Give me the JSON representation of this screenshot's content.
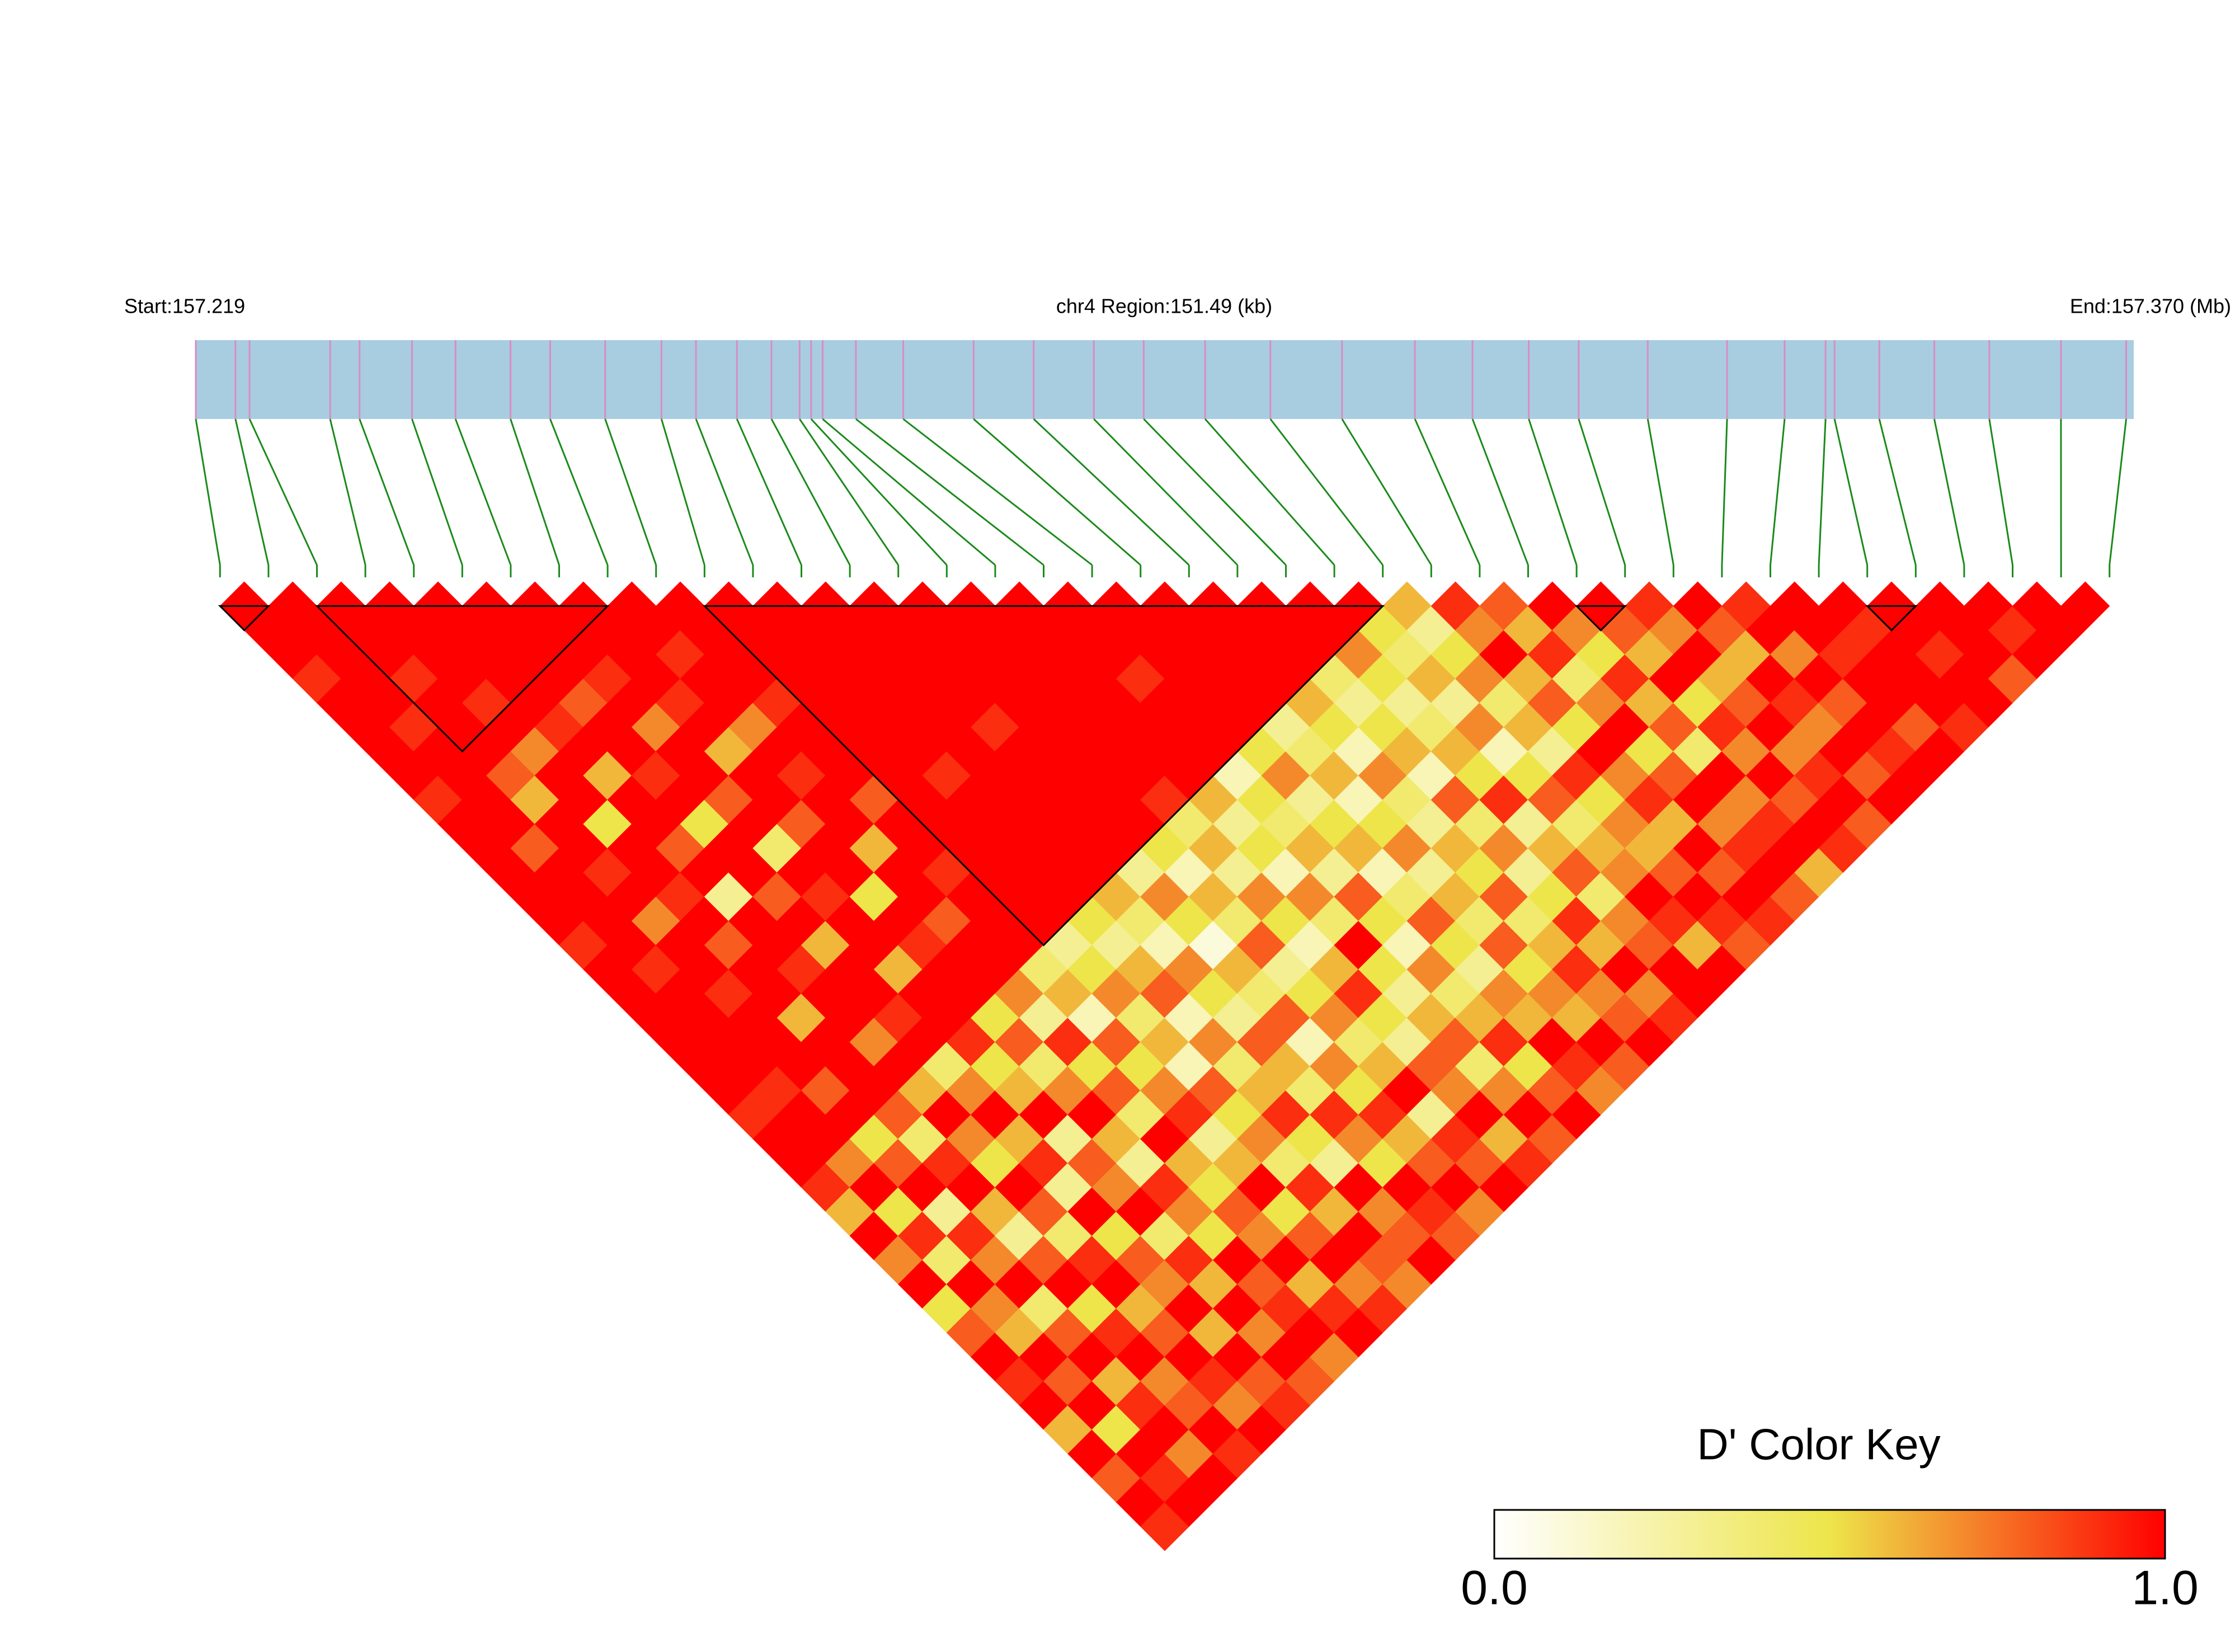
{
  "header": {
    "start": "Start:157.219",
    "region": "chr4 Region:151.49 (kb)",
    "end": "End:157.370 (Mb)"
  },
  "chart_data": {
    "type": "ld_heatmap",
    "xlim": [
      0,
      151.49
    ],
    "snp_positions": [
      0,
      3.1,
      4.2,
      10.5,
      12.8,
      16.9,
      20.3,
      24.6,
      27.7,
      32.0,
      36.4,
      39.1,
      42.3,
      45.0,
      47.2,
      48.1,
      49.0,
      51.6,
      55.3,
      60.8,
      65.5,
      70.2,
      74.1,
      78.9,
      84.0,
      89.6,
      95.3,
      99.8,
      104.2,
      108.1,
      113.5,
      119.7,
      124.2,
      127.4,
      128.1,
      131.6,
      135.9,
      140.2,
      145.8,
      150.9
    ],
    "bar_color": "#a8cde0",
    "tick_color": "#d98cc4",
    "connector_color": "#1a8a1a",
    "block_color": "#000000",
    "color_stops": [
      "#ffffff",
      "#ede54a",
      "#ff0000"
    ],
    "blocks": [
      [
        0,
        1
      ],
      [
        2,
        8
      ],
      [
        10,
        24
      ],
      [
        28,
        29
      ],
      [
        34,
        35
      ]
    ],
    "dprime": [
      [
        1,
        1,
        1,
        0.9,
        1,
        1,
        1,
        1,
        0.9,
        1,
        1,
        1,
        1,
        1,
        0.9,
        1,
        1,
        1,
        1,
        1,
        1,
        0.9,
        1,
        1,
        0.9,
        0.6,
        1,
        0.7,
        1,
        0.5,
        0.8,
        1,
        0.9,
        1,
        0.6,
        1,
        0.8,
        1,
        0.9
      ],
      [
        1,
        1,
        1,
        1,
        1,
        0.9,
        1,
        1,
        1,
        1,
        0.8,
        1,
        1,
        1,
        1,
        0.9,
        1,
        1,
        1,
        1,
        0.9,
        1,
        1,
        0.7,
        1,
        0.5,
        0.9,
        0.4,
        1,
        0.7,
        0.6,
        1,
        0.8,
        1,
        0.5,
        1,
        0.9,
        1
      ],
      [
        1,
        1,
        1,
        0.9,
        1,
        1,
        1,
        0.8,
        0.6,
        1,
        1,
        0.9,
        1,
        0.7,
        1,
        1,
        0.9,
        1,
        1,
        1,
        0.8,
        1,
        0.5,
        0.8,
        1,
        0.3,
        0.9,
        0.7,
        1,
        0.4,
        0.8,
        1,
        0.6,
        0.9,
        1,
        0.7,
        1
      ],
      [
        1,
        1,
        1,
        1,
        0.9,
        1,
        0.7,
        1,
        1,
        0.5,
        1,
        1,
        0.9,
        1,
        0.8,
        1,
        1,
        0.6,
        1,
        1,
        1,
        0.8,
        0.4,
        0.9,
        1,
        0.6,
        0.3,
        0.8,
        1,
        0.5,
        0.9,
        1,
        0.7,
        0.8,
        1,
        0.9
      ],
      [
        1,
        1,
        1,
        1,
        1,
        0.9,
        1,
        0.6,
        1,
        1,
        0.8,
        1,
        0.3,
        1,
        1,
        0.9,
        1,
        1,
        0.7,
        1,
        0.6,
        1,
        0.7,
        0.5,
        1,
        0.8,
        0.4,
        0.9,
        1,
        0.6,
        0.8,
        1,
        0.9,
        0.7,
        1
      ],
      [
        1,
        1,
        1,
        1,
        0.8,
        1,
        1,
        0.9,
        1,
        0.5,
        1,
        1,
        0.8,
        1,
        0.6,
        1,
        1,
        0.9,
        1,
        0.4,
        0.7,
        1,
        0.6,
        0.9,
        0.3,
        1,
        0.5,
        0.8,
        0.7,
        1,
        0.6,
        1,
        0.8,
        0.9
      ],
      [
        1,
        1,
        1,
        0.9,
        1,
        0.7,
        1,
        1,
        0.8,
        1,
        0.4,
        1,
        0.9,
        1,
        1,
        0.6,
        1,
        1,
        0.9,
        0.5,
        0.6,
        1,
        0.3,
        0.8,
        0.7,
        1,
        0.4,
        0.9,
        0.6,
        1,
        0.7,
        1,
        0.8
      ],
      [
        1,
        1,
        1,
        1,
        0.9,
        1,
        0.6,
        1,
        1,
        0.8,
        1,
        1,
        0.5,
        1,
        0.9,
        1,
        1,
        0.5,
        0.8,
        0.4,
        0.7,
        1,
        0.6,
        0.3,
        0.9,
        0.7,
        0.5,
        1,
        0.8,
        0.9,
        1,
        0.7
      ],
      [
        1,
        1,
        0.9,
        1,
        1,
        0.7,
        1,
        0.9,
        1,
        1,
        0.6,
        1,
        1,
        0.8,
        1,
        1,
        0.7,
        0.3,
        0.9,
        0.5,
        0.8,
        0.4,
        1,
        0.6,
        0.5,
        0.8,
        0.7,
        1,
        0.6,
        0.9,
        1
      ],
      [
        1,
        1,
        1,
        1,
        0.9,
        1,
        1,
        1,
        0.8,
        1,
        1,
        0.9,
        1,
        1,
        1,
        0.4,
        0.6,
        0.2,
        0.8,
        0.5,
        0.7,
        0.9,
        0.3,
        0.6,
        1,
        0.5,
        0.8,
        1,
        0.7,
        0.9
      ],
      [
        1,
        1,
        1,
        1,
        1,
        1,
        1,
        1,
        1,
        1,
        1,
        1,
        1,
        1,
        0.3,
        0.5,
        0.7,
        0.4,
        0.6,
        0.2,
        0.8,
        0.5,
        0.7,
        0.4,
        0.9,
        0.6,
        1,
        0.8,
        0.7
      ],
      [
        1,
        1,
        1,
        1,
        1,
        1,
        1,
        0.9,
        1,
        1,
        1,
        1,
        1,
        0.5,
        0.3,
        0.6,
        0.8,
        0.2,
        0.7,
        0.4,
        0.6,
        0.9,
        0.5,
        0.3,
        1,
        0.7,
        0.8,
        1
      ],
      [
        1,
        1,
        1,
        1,
        1,
        1,
        1,
        1,
        1,
        1,
        1,
        1,
        0.6,
        0.4,
        0.2,
        0.7,
        0.5,
        0.3,
        0.8,
        0.6,
        0.4,
        0.9,
        0.7,
        0.5,
        1,
        0.9,
        0.8
      ],
      [
        1,
        1,
        1,
        1,
        1,
        0.9,
        1,
        1,
        1,
        1,
        1,
        0.3,
        0.7,
        0.5,
        0.1,
        0.6,
        0.4,
        0.8,
        0.2,
        0.7,
        0.5,
        0.9,
        0.6,
        0.8,
        1,
        0.7
      ],
      [
        1,
        1,
        1,
        1,
        1,
        1,
        1,
        1,
        1,
        1,
        0.5,
        0.2,
        0.6,
        0.4,
        0.8,
        0.3,
        0.5,
        0.7,
        0.4,
        0.6,
        1,
        0.3,
        0.9,
        0.8,
        1
      ],
      [
        1,
        1,
        1,
        1,
        1,
        1,
        1,
        1,
        0.9,
        0.4,
        0.6,
        0.3,
        0.7,
        0.5,
        0.2,
        0.6,
        0.9,
        0.5,
        0.3,
        0.8,
        0.7,
        1,
        0.6,
        0.9
      ],
      [
        1,
        1,
        1,
        1,
        1,
        1,
        1,
        1,
        0.6,
        0.3,
        0.5,
        0.2,
        0.7,
        0.4,
        1,
        0.5,
        0.3,
        0.6,
        0.8,
        0.4,
        0.7,
        1,
        0.8
      ],
      [
        1,
        1,
        1,
        0.9,
        1,
        1,
        1,
        0.2,
        0.5,
        0.4,
        0.6,
        0.3,
        0.8,
        0.5,
        0.2,
        0.7,
        0.4,
        0.6,
        0.9,
        0.5,
        0.8,
        1
      ],
      [
        1,
        1,
        1,
        1,
        1,
        1,
        0.5,
        0.7,
        0.3,
        0.5,
        0.6,
        0.2,
        0.4,
        0.8,
        0.5,
        0.3,
        0.7,
        0.6,
        1,
        0.9,
        0.7
      ],
      [
        1,
        1,
        1,
        1,
        1,
        0.3,
        0.4,
        0.6,
        0.2,
        0.5,
        0.7,
        0.3,
        0.6,
        0.4,
        0.8,
        0.5,
        0.7,
        0.6,
        1,
        0.8
      ],
      [
        1,
        1,
        1,
        1,
        0.6,
        0.5,
        0.2,
        0.7,
        0.4,
        0.3,
        0.6,
        0.5,
        0.8,
        0.4,
        0.6,
        0.9,
        0.7,
        0.8,
        1
      ],
      [
        1,
        1,
        1,
        0.4,
        0.3,
        0.5,
        0.6,
        0.2,
        0.8,
        0.4,
        0.7,
        0.3,
        0.5,
        0.9,
        0.6,
        1,
        0.7,
        0.9
      ],
      [
        1,
        1,
        0.7,
        0.5,
        0.3,
        0.4,
        0.6,
        0.5,
        0.9,
        0.3,
        0.6,
        0.8,
        0.4,
        0.7,
        0.8,
        1,
        1
      ],
      [
        1,
        0.5,
        0.4,
        0.6,
        0.3,
        0.7,
        0.2,
        0.5,
        0.8,
        0.4,
        0.6,
        0.7,
        1,
        0.9,
        0.6,
        1
      ],
      [
        0.6,
        0.3,
        0.5,
        0.7,
        0.4,
        0.6,
        0.3,
        0.9,
        0.5,
        0.7,
        0.6,
        0.8,
        1,
        0.9,
        0.8
      ],
      [
        0.9,
        0.7,
        1,
        0.6,
        0.8,
        0.5,
        1,
        0.7,
        0.9,
        0.6,
        1,
        0.8,
        1,
        0.9
      ],
      [
        0.8,
        0.6,
        0.9,
        0.4,
        0.7,
        1,
        0.5,
        0.8,
        1,
        0.7,
        0.9,
        1,
        0.8
      ],
      [
        1,
        0.7,
        0.5,
        0.9,
        0.6,
        0.8,
        0.4,
        1,
        0.7,
        0.9,
        1,
        0.6
      ],
      [
        1,
        0.8,
        0.6,
        1,
        0.5,
        0.9,
        0.7,
        1,
        0.8,
        1,
        0.9
      ],
      [
        0.9,
        0.7,
        1,
        0.6,
        0.8,
        1,
        0.7,
        0.9,
        1,
        0.8
      ],
      [
        1,
        0.8,
        0.6,
        1,
        0.9,
        0.7,
        1,
        0.8,
        1
      ],
      [
        0.9,
        1,
        0.7,
        1,
        0.8,
        1,
        0.9,
        1
      ],
      [
        1,
        1,
        0.9,
        1,
        1,
        0.8,
        1
      ],
      [
        1,
        0.9,
        1,
        1,
        1,
        0.9
      ],
      [
        1,
        1,
        0.9,
        1,
        1
      ],
      [
        1,
        1,
        1,
        0.8
      ],
      [
        1,
        0.9,
        1
      ],
      [
        1,
        1
      ],
      [
        1
      ]
    ],
    "color_key": {
      "title": "D' Color Key",
      "ticks": [
        {
          "value": 0,
          "label": "0.0"
        },
        {
          "value": 1,
          "label": "1.0"
        }
      ]
    }
  }
}
